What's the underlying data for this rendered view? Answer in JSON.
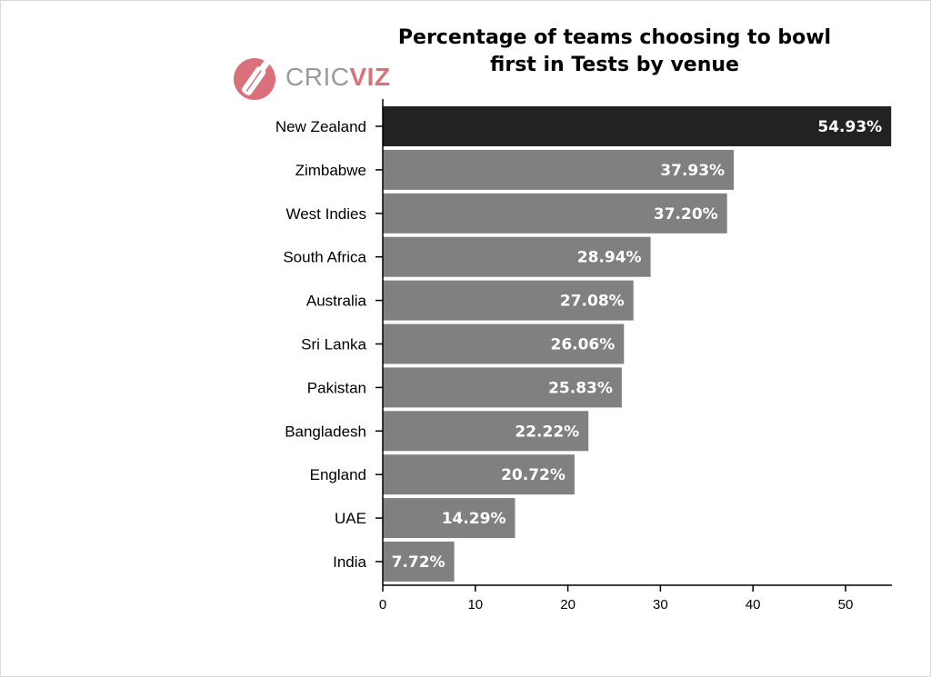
{
  "logo": {
    "part1": "CRIC",
    "part2": "VIZ",
    "brand_color": "#d9707a"
  },
  "colors": {
    "highlight_bar": "#222222",
    "bar": "#808080",
    "axis": "#000000"
  },
  "chart_data": {
    "type": "bar",
    "orientation": "horizontal",
    "title": "Percentage of teams choosing to bowl\nfirst in Tests by venue",
    "categories": [
      "New Zealand",
      "Zimbabwe",
      "West Indies",
      "South Africa",
      "Australia",
      "Sri Lanka",
      "Pakistan",
      "Bangladesh",
      "England",
      "UAE",
      "India"
    ],
    "values": [
      54.93,
      37.93,
      37.2,
      28.94,
      27.08,
      26.06,
      25.83,
      22.22,
      20.72,
      14.29,
      7.72
    ],
    "data_labels": [
      "54.93%",
      "37.93%",
      "37.20%",
      "28.94%",
      "27.08%",
      "26.06%",
      "25.83%",
      "22.22%",
      "20.72%",
      "14.29%",
      "7.72%"
    ],
    "highlight": "New Zealand",
    "xlim": [
      0,
      55
    ],
    "xticks": [
      0,
      10,
      20,
      30,
      40,
      50
    ],
    "xlabel": "",
    "ylabel": "",
    "grid": false
  }
}
